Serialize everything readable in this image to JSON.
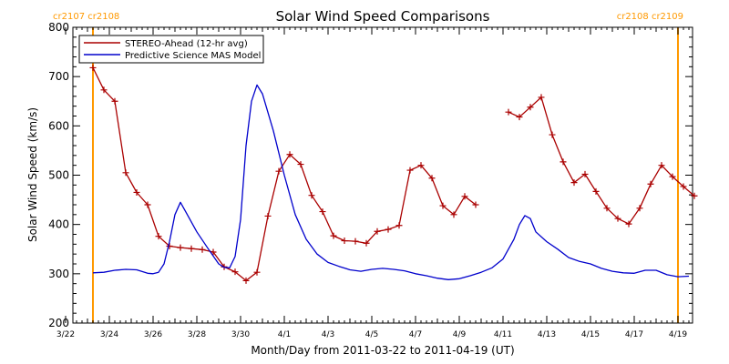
{
  "chart_data": {
    "type": "line",
    "title": "Solar Wind Speed Comparisons",
    "xlabel": "Month/Day from 2011-03-22 to 2011-04-19 (UT)",
    "ylabel": "Solar Wind Speed (km/s)",
    "xlim": [
      0,
      28.7
    ],
    "ylim": [
      200,
      800
    ],
    "y_ticks": [
      200,
      300,
      400,
      500,
      600,
      700,
      800
    ],
    "x_ticks": [
      {
        "day": 0,
        "label": "3/22"
      },
      {
        "day": 2,
        "label": "3/24"
      },
      {
        "day": 4,
        "label": "3/26"
      },
      {
        "day": 6,
        "label": "3/28"
      },
      {
        "day": 8,
        "label": "3/30"
      },
      {
        "day": 10,
        "label": "4/1"
      },
      {
        "day": 12,
        "label": "4/3"
      },
      {
        "day": 14,
        "label": "4/5"
      },
      {
        "day": 16,
        "label": "4/7"
      },
      {
        "day": 18,
        "label": "4/9"
      },
      {
        "day": 20,
        "label": "4/11"
      },
      {
        "day": 22,
        "label": "4/13"
      },
      {
        "day": 24,
        "label": "4/15"
      },
      {
        "day": 26,
        "label": "4/17"
      },
      {
        "day": 28,
        "label": "4/19"
      }
    ],
    "grid": false,
    "legend_position": "top-left",
    "markers": [
      {
        "day": 1.25,
        "label": "cr2107 cr2108",
        "label_side": "left"
      },
      {
        "day": 28.0,
        "label": "cr2108 cr2109",
        "label_side": "right"
      }
    ],
    "series": [
      {
        "name": "STEREO-Ahead (12-hr avg)",
        "color": "#aa0000",
        "marker": "+",
        "segments": [
          [
            [
              1.25,
              718
            ],
            [
              1.75,
              673
            ],
            [
              2.25,
              650
            ],
            [
              2.75,
              505
            ],
            [
              3.25,
              465
            ],
            [
              3.75,
              440
            ],
            [
              4.25,
              376
            ],
            [
              4.75,
              356
            ],
            [
              5.25,
              353
            ],
            [
              5.75,
              351
            ],
            [
              6.25,
              349
            ],
            [
              6.75,
              344
            ],
            [
              7.25,
              314
            ],
            [
              7.75,
              304
            ],
            [
              8.25,
              286
            ],
            [
              8.75,
              303
            ],
            [
              9.25,
              417
            ],
            [
              9.75,
              508
            ],
            [
              10.25,
              542
            ],
            [
              10.75,
              522
            ],
            [
              11.25,
              459
            ],
            [
              11.75,
              426
            ],
            [
              12.25,
              377
            ],
            [
              12.75,
              367
            ],
            [
              13.25,
              366
            ],
            [
              13.75,
              362
            ],
            [
              14.25,
              386
            ],
            [
              14.75,
              390
            ],
            [
              15.25,
              398
            ],
            [
              15.75,
              510
            ],
            [
              16.25,
              520
            ],
            [
              16.75,
              494
            ],
            [
              17.25,
              438
            ],
            [
              17.75,
              420
            ],
            [
              18.25,
              457
            ],
            [
              18.75,
              440
            ]
          ],
          [
            [
              20.25,
              628
            ],
            [
              20.75,
              618
            ],
            [
              21.25,
              638
            ],
            [
              21.75,
              658
            ],
            [
              22.25,
              582
            ],
            [
              22.75,
              527
            ],
            [
              23.25,
              485
            ],
            [
              23.75,
              502
            ],
            [
              24.25,
              467
            ],
            [
              24.75,
              433
            ],
            [
              25.25,
              412
            ],
            [
              25.75,
              401
            ],
            [
              26.25,
              433
            ],
            [
              26.75,
              482
            ],
            [
              27.25,
              520
            ],
            [
              27.75,
              497
            ],
            [
              28.25,
              477
            ],
            [
              28.75,
              458
            ]
          ]
        ]
      },
      {
        "name": "Predictive Science MAS Model",
        "color": "#0000cc",
        "marker": "none",
        "points": [
          [
            1.25,
            302
          ],
          [
            1.75,
            303
          ],
          [
            2.25,
            307
          ],
          [
            2.75,
            309
          ],
          [
            3.25,
            308
          ],
          [
            3.75,
            301
          ],
          [
            4.0,
            300
          ],
          [
            4.25,
            303
          ],
          [
            4.5,
            320
          ],
          [
            4.75,
            365
          ],
          [
            5.0,
            420
          ],
          [
            5.25,
            445
          ],
          [
            5.5,
            425
          ],
          [
            6.0,
            385
          ],
          [
            6.5,
            352
          ],
          [
            7.0,
            320
          ],
          [
            7.25,
            313
          ],
          [
            7.5,
            312
          ],
          [
            7.75,
            335
          ],
          [
            8.0,
            410
          ],
          [
            8.25,
            560
          ],
          [
            8.5,
            650
          ],
          [
            8.75,
            683
          ],
          [
            9.0,
            665
          ],
          [
            9.5,
            590
          ],
          [
            10.0,
            500
          ],
          [
            10.5,
            420
          ],
          [
            11.0,
            370
          ],
          [
            11.5,
            340
          ],
          [
            12.0,
            323
          ],
          [
            12.5,
            315
          ],
          [
            13.0,
            308
          ],
          [
            13.5,
            305
          ],
          [
            14.0,
            309
          ],
          [
            14.5,
            311
          ],
          [
            15.0,
            309
          ],
          [
            15.5,
            306
          ],
          [
            16.0,
            300
          ],
          [
            16.5,
            296
          ],
          [
            17.0,
            291
          ],
          [
            17.5,
            288
          ],
          [
            18.0,
            290
          ],
          [
            18.5,
            296
          ],
          [
            19.0,
            303
          ],
          [
            19.5,
            312
          ],
          [
            20.0,
            330
          ],
          [
            20.5,
            370
          ],
          [
            20.75,
            400
          ],
          [
            21.0,
            418
          ],
          [
            21.25,
            412
          ],
          [
            21.5,
            385
          ],
          [
            22.0,
            365
          ],
          [
            22.5,
            350
          ],
          [
            23.0,
            333
          ],
          [
            23.5,
            325
          ],
          [
            24.0,
            320
          ],
          [
            24.5,
            311
          ],
          [
            25.0,
            305
          ],
          [
            25.5,
            302
          ],
          [
            26.0,
            301
          ],
          [
            26.5,
            307
          ],
          [
            27.0,
            307
          ],
          [
            27.5,
            298
          ],
          [
            28.0,
            294
          ],
          [
            28.5,
            295
          ]
        ]
      }
    ]
  }
}
